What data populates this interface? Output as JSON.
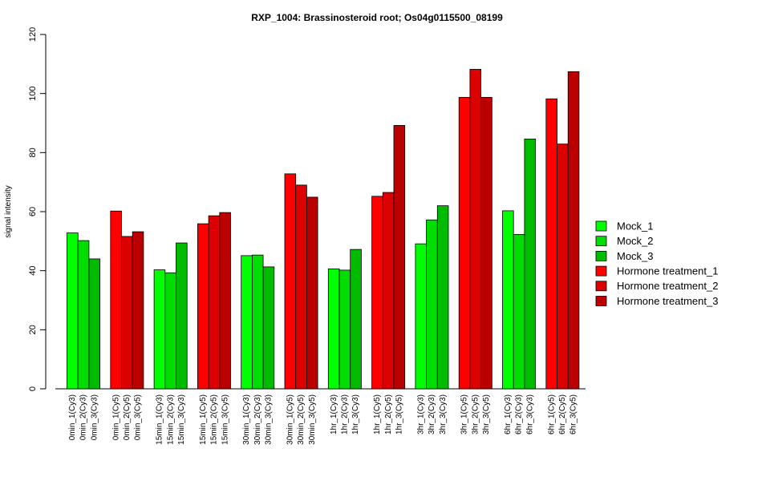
{
  "chart_data": {
    "type": "bar",
    "title": "RXP_1004: Brassinosteroid root; Os04g0115500_08199",
    "ylabel": "signal intensity",
    "xlabel": "",
    "ylim": [
      0,
      120
    ],
    "yticks": [
      0,
      20,
      40,
      60,
      80,
      100,
      120
    ],
    "grid": false,
    "legend_position": "right",
    "groups": [
      {
        "labels": [
          "0min_1(Cy3)",
          "0min_2(Cy3)",
          "0min_3(Cy3)"
        ],
        "values": [
          52.8,
          50.2,
          44.0
        ],
        "kind": "mock"
      },
      {
        "labels": [
          "0min_1(Cy5)",
          "0min_2(Cy5)",
          "0min_3(Cy5)"
        ],
        "values": [
          60.2,
          51.6,
          53.2
        ],
        "kind": "hormone"
      },
      {
        "labels": [
          "15min_1(Cy3)",
          "15min_2(Cy3)",
          "15min_3(Cy3)"
        ],
        "values": [
          40.3,
          39.3,
          49.4
        ],
        "kind": "mock"
      },
      {
        "labels": [
          "15min_1(Cy5)",
          "15min_2(Cy5)",
          "15min_3(Cy5)"
        ],
        "values": [
          55.9,
          58.6,
          59.7
        ],
        "kind": "hormone"
      },
      {
        "labels": [
          "30min_1(Cy3)",
          "30min_2(Cy3)",
          "30min_3(Cy3)"
        ],
        "values": [
          45.1,
          45.3,
          41.3
        ],
        "kind": "mock"
      },
      {
        "labels": [
          "30min_1(Cy5)",
          "30min_2(Cy5)",
          "30min_3(Cy5)"
        ],
        "values": [
          72.8,
          69.0,
          64.9
        ],
        "kind": "hormone"
      },
      {
        "labels": [
          "1hr_1(Cy3)",
          "1hr_2(Cy3)",
          "1hr_3(Cy3)"
        ],
        "values": [
          40.6,
          40.2,
          47.2
        ],
        "kind": "mock"
      },
      {
        "labels": [
          "1hr_1(Cy5)",
          "1hr_2(Cy5)",
          "1hr_3(Cy5)"
        ],
        "values": [
          65.2,
          66.5,
          89.2
        ],
        "kind": "hormone"
      },
      {
        "labels": [
          "3hr_1(Cy3)",
          "3hr_2(Cy3)",
          "3hr_3(Cy3)"
        ],
        "values": [
          49.1,
          57.2,
          62.0
        ],
        "kind": "mock"
      },
      {
        "labels": [
          "3hr_1(Cy5)",
          "3hr_2(Cy5)",
          "3hr_3(Cy5)"
        ],
        "values": [
          98.7,
          108.2,
          98.7
        ],
        "kind": "hormone"
      },
      {
        "labels": [
          "6hr_1(Cy3)",
          "6hr_2(Cy3)",
          "6hr_3(Cy3)"
        ],
        "values": [
          60.3,
          52.3,
          84.6
        ],
        "kind": "mock"
      },
      {
        "labels": [
          "6hr_1(Cy5)",
          "6hr_2(Cy5)",
          "6hr_3(Cy5)"
        ],
        "values": [
          98.2,
          82.9,
          107.4
        ],
        "kind": "hormone"
      }
    ],
    "series": [
      {
        "name": "Mock_1",
        "color": "#00ff00"
      },
      {
        "name": "Mock_2",
        "color": "#00dd00"
      },
      {
        "name": "Mock_3",
        "color": "#00bb00"
      },
      {
        "name": "Hormone treatment_1",
        "color": "#ff0000"
      },
      {
        "name": "Hormone treatment_2",
        "color": "#dd0000"
      },
      {
        "name": "Hormone treatment_3",
        "color": "#bb0000"
      }
    ]
  }
}
